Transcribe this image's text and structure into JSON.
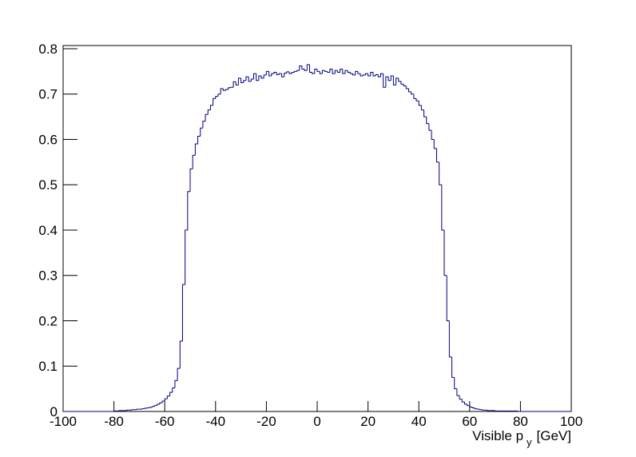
{
  "chart_data": {
    "type": "histogram",
    "x_label": "Visible p",
    "x_label_subscript": "y",
    "x_label_unit": "[GeV]",
    "color": "#000080",
    "xlim": [
      -100,
      100
    ],
    "ylim": [
      0,
      0.807
    ],
    "xticks": [
      -100,
      -80,
      -60,
      -40,
      -20,
      0,
      20,
      40,
      60,
      80,
      100
    ],
    "yticks": [
      0,
      0.1,
      0.2,
      0.3,
      0.4,
      0.5,
      0.6,
      0.7,
      0.8
    ],
    "bins": [
      -100,
      -99,
      -98,
      -97,
      -96,
      -95,
      -94,
      -93,
      -92,
      -91,
      -90,
      -89,
      -88,
      -87,
      -86,
      -85,
      -84,
      -83,
      -82,
      -81,
      -80,
      -79,
      -78,
      -77,
      -76,
      -75,
      -74,
      -73,
      -72,
      -71,
      -70,
      -69,
      -68,
      -67,
      -66,
      -65,
      -64,
      -63,
      -62,
      -61,
      -60,
      -59,
      -58,
      -57,
      -56,
      -55,
      -54,
      -53,
      -52,
      -51,
      -50,
      -49,
      -48,
      -47,
      -46,
      -45,
      -44,
      -43,
      -42,
      -41,
      -40,
      -39,
      -38,
      -37,
      -36,
      -35,
      -34,
      -33,
      -32,
      -31,
      -30,
      -29,
      -28,
      -27,
      -26,
      -25,
      -24,
      -23,
      -22,
      -21,
      -20,
      -19,
      -18,
      -17,
      -16,
      -15,
      -14,
      -13,
      -12,
      -11,
      -10,
      -9,
      -8,
      -7,
      -6,
      -5,
      -4,
      -3,
      -2,
      -1,
      0,
      1,
      2,
      3,
      4,
      5,
      6,
      7,
      8,
      9,
      10,
      11,
      12,
      13,
      14,
      15,
      16,
      17,
      18,
      19,
      20,
      21,
      22,
      23,
      24,
      25,
      26,
      27,
      28,
      29,
      30,
      31,
      32,
      33,
      34,
      35,
      36,
      37,
      38,
      39,
      40,
      41,
      42,
      43,
      44,
      45,
      46,
      47,
      48,
      49,
      50,
      51,
      52,
      53,
      54,
      55,
      56,
      57,
      58,
      59,
      60,
      61,
      62,
      63,
      64,
      65,
      66,
      67,
      68,
      69,
      70,
      71,
      72,
      73,
      74,
      75,
      76,
      77,
      78,
      79,
      80,
      81,
      82,
      83,
      84,
      85,
      86,
      87,
      88,
      89,
      90,
      91,
      92,
      93,
      94,
      95,
      96,
      97,
      98,
      99,
      100
    ],
    "counts": [
      0,
      0,
      0,
      0,
      0,
      0,
      0,
      0,
      0,
      0,
      0,
      0,
      0,
      0,
      0,
      0,
      0,
      0,
      0,
      0,
      0.001,
      0.001,
      0.002,
      0.002,
      0.002,
      0.003,
      0.003,
      0.004,
      0.004,
      0.005,
      0.005,
      0.006,
      0.007,
      0.008,
      0.009,
      0.011,
      0.013,
      0.016,
      0.019,
      0.023,
      0.028,
      0.034,
      0.042,
      0.052,
      0.068,
      0.095,
      0.155,
      0.28,
      0.4,
      0.485,
      0.535,
      0.565,
      0.59,
      0.607,
      0.625,
      0.64,
      0.655,
      0.665,
      0.675,
      0.69,
      0.695,
      0.7,
      0.712,
      0.708,
      0.71,
      0.714,
      0.715,
      0.727,
      0.72,
      0.735,
      0.725,
      0.73,
      0.738,
      0.728,
      0.733,
      0.745,
      0.73,
      0.74,
      0.735,
      0.742,
      0.75,
      0.74,
      0.745,
      0.748,
      0.743,
      0.745,
      0.738,
      0.746,
      0.749,
      0.745,
      0.748,
      0.75,
      0.752,
      0.762,
      0.755,
      0.752,
      0.765,
      0.748,
      0.745,
      0.755,
      0.75,
      0.745,
      0.752,
      0.75,
      0.748,
      0.755,
      0.745,
      0.752,
      0.748,
      0.755,
      0.745,
      0.752,
      0.748,
      0.745,
      0.742,
      0.75,
      0.745,
      0.74,
      0.742,
      0.745,
      0.74,
      0.748,
      0.74,
      0.743,
      0.738,
      0.745,
      0.715,
      0.738,
      0.73,
      0.74,
      0.72,
      0.735,
      0.728,
      0.722,
      0.718,
      0.712,
      0.705,
      0.7,
      0.69,
      0.685,
      0.675,
      0.665,
      0.65,
      0.635,
      0.62,
      0.6,
      0.58,
      0.55,
      0.5,
      0.4,
      0.3,
      0.2,
      0.12,
      0.075,
      0.05,
      0.035,
      0.027,
      0.021,
      0.016,
      0.013,
      0.01,
      0.008,
      0.006,
      0.005,
      0.004,
      0.003,
      0.003,
      0.002,
      0.002,
      0.002,
      0.001,
      0.001,
      0.001,
      0.001,
      0.001,
      0.001,
      0.001,
      0.001,
      0.001,
      0,
      0,
      0,
      0,
      0,
      0,
      0,
      0,
      0,
      0,
      0,
      0,
      0,
      0,
      0,
      0,
      0,
      0,
      0,
      0,
      0
    ]
  }
}
